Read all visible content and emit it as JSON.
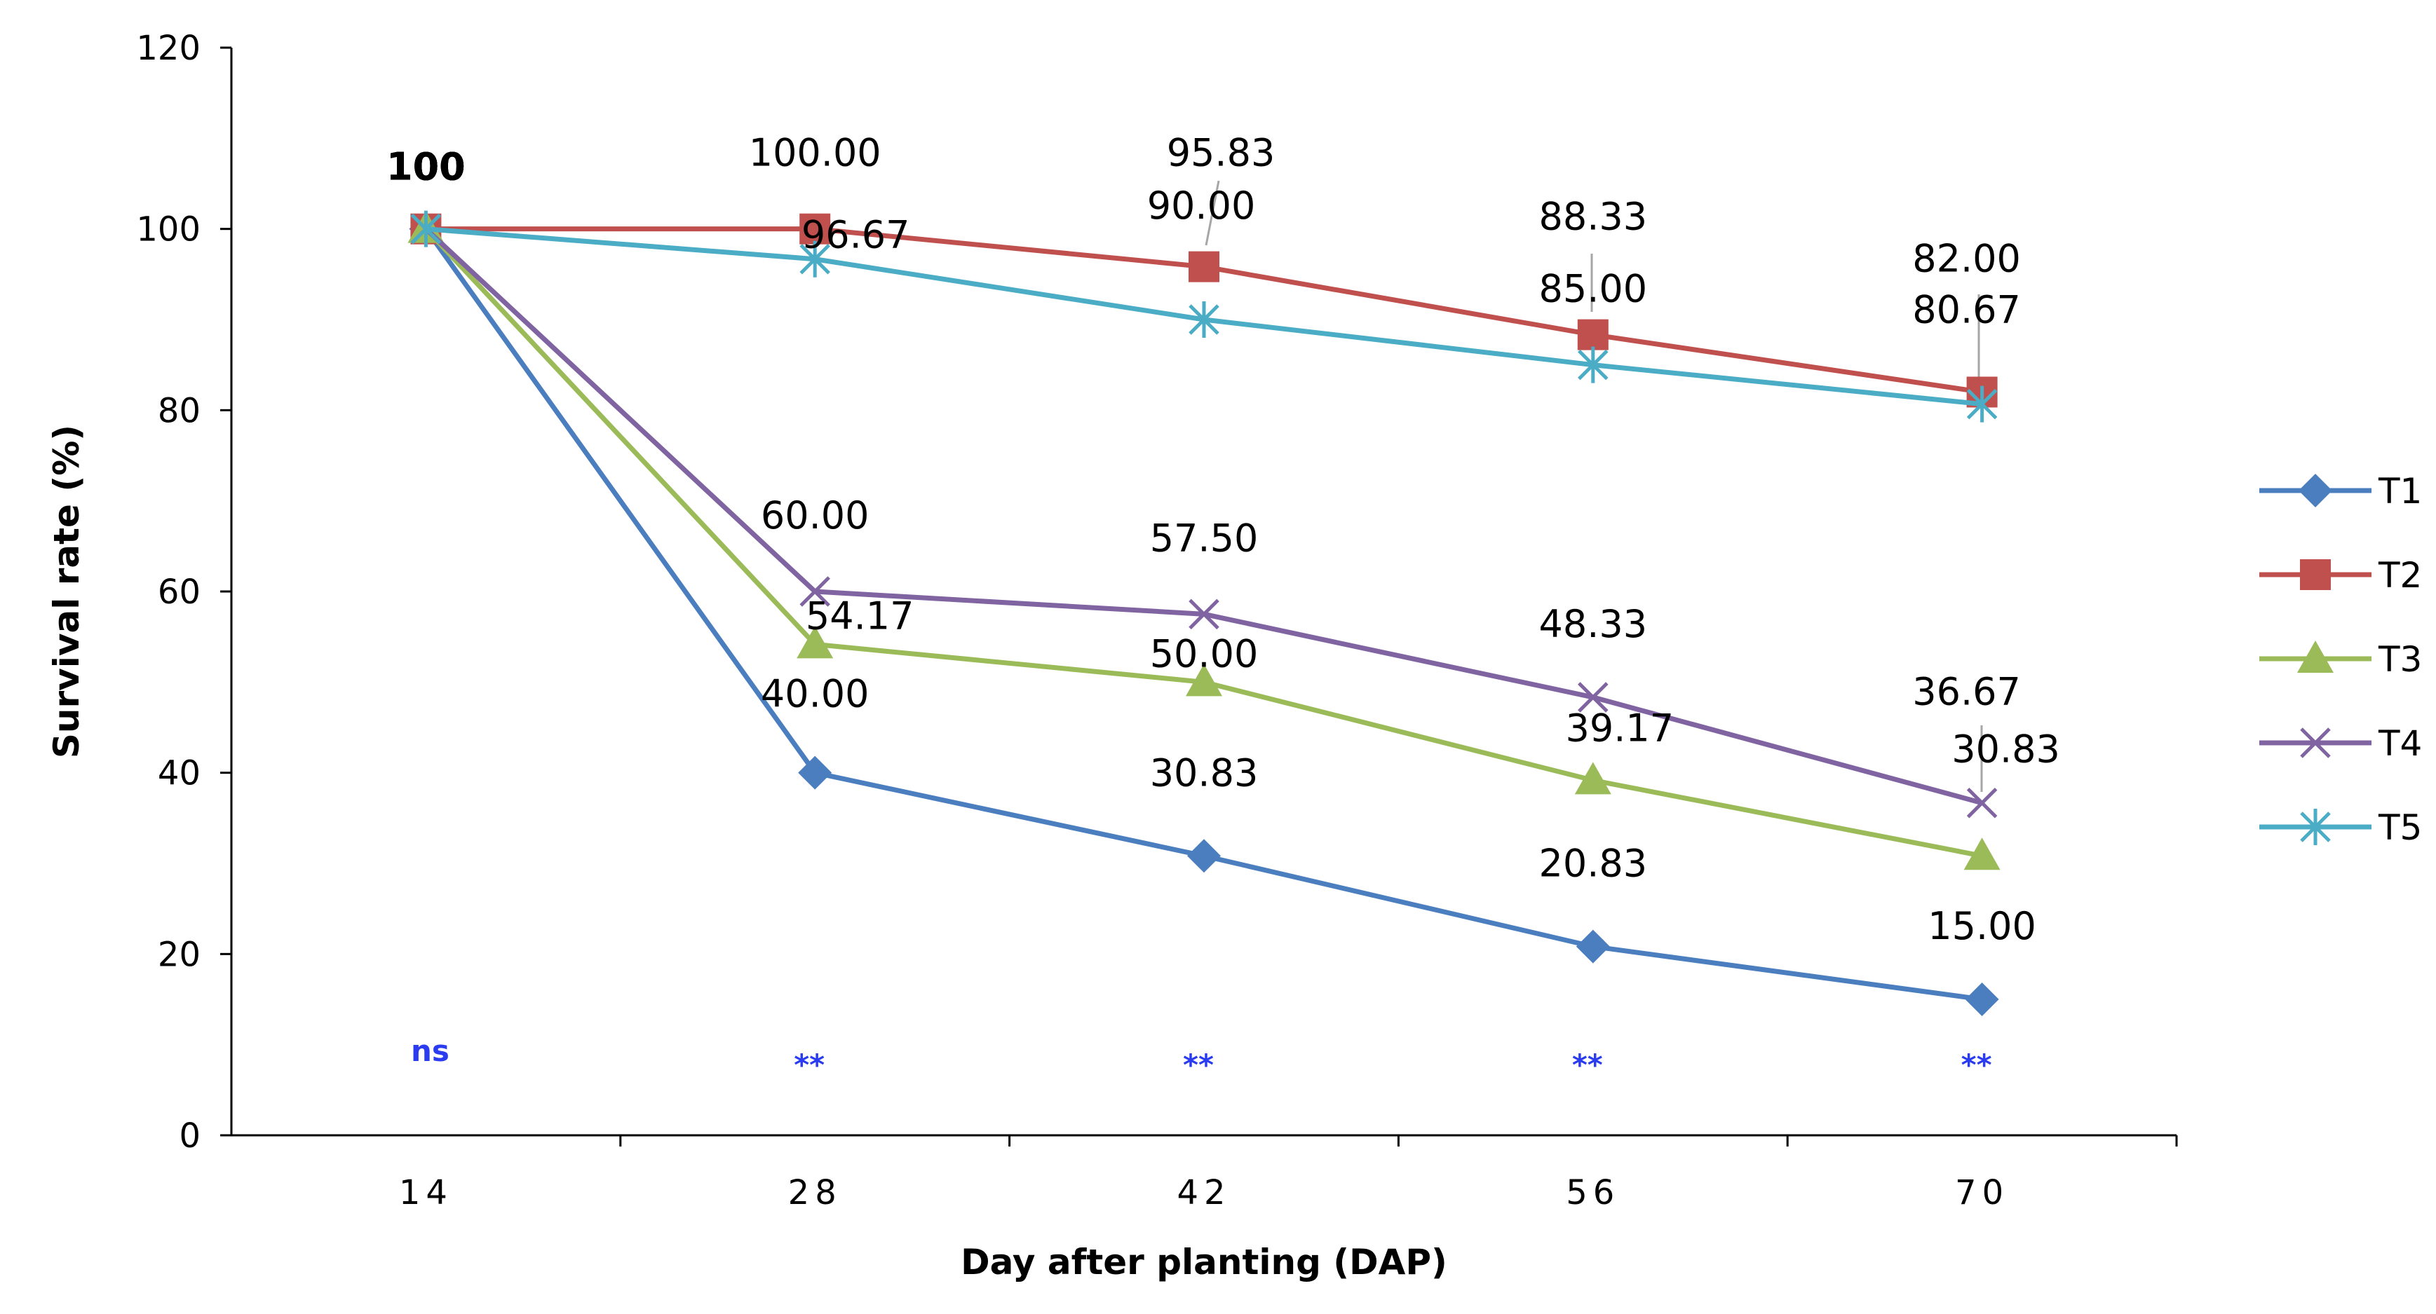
{
  "chart_data": {
    "type": "line",
    "title": "",
    "xlabel": "Day after planting (DAP)",
    "ylabel": "Survival rate (%)",
    "x": [
      "14",
      "28",
      "42",
      "56",
      "70"
    ],
    "ylim": [
      0,
      120
    ],
    "yticks": [
      "0",
      "20",
      "40",
      "60",
      "80",
      "100",
      "120"
    ],
    "grid": false,
    "legend_position": "right",
    "series": [
      {
        "name": "T1",
        "color": "#4a7ebf",
        "marker": "diamond",
        "values": [
          100,
          40.0,
          30.83,
          20.83,
          15.0
        ],
        "labels": [
          "100",
          "40.00",
          "30.83",
          "20.83",
          "15.00"
        ]
      },
      {
        "name": "T2",
        "color": "#c0504d",
        "marker": "square",
        "values": [
          100,
          100.0,
          95.83,
          88.33,
          82.0
        ],
        "labels": [
          "100",
          "100.00",
          "95.83",
          "88.33",
          "82.00"
        ]
      },
      {
        "name": "T3",
        "color": "#9bbb59",
        "marker": "triangle",
        "values": [
          100,
          54.17,
          50.0,
          39.17,
          30.83
        ],
        "labels": [
          "100",
          "54.17",
          "50.00",
          "39.17",
          "30.83"
        ]
      },
      {
        "name": "T4",
        "color": "#8064a2",
        "marker": "x",
        "values": [
          100,
          60.0,
          57.5,
          48.33,
          36.67
        ],
        "labels": [
          "100",
          "60.00",
          "57.50",
          "48.33",
          "36.67"
        ]
      },
      {
        "name": "T5",
        "color": "#4bacc6",
        "marker": "star",
        "values": [
          100,
          96.67,
          90.0,
          85.0,
          80.67
        ],
        "labels": [
          "100",
          "96.67",
          "90.00",
          "85.00",
          "80.67"
        ]
      }
    ],
    "significance": [
      "ns",
      "**",
      "**",
      "**",
      "**"
    ],
    "significance_color": "#2b3cf0"
  }
}
